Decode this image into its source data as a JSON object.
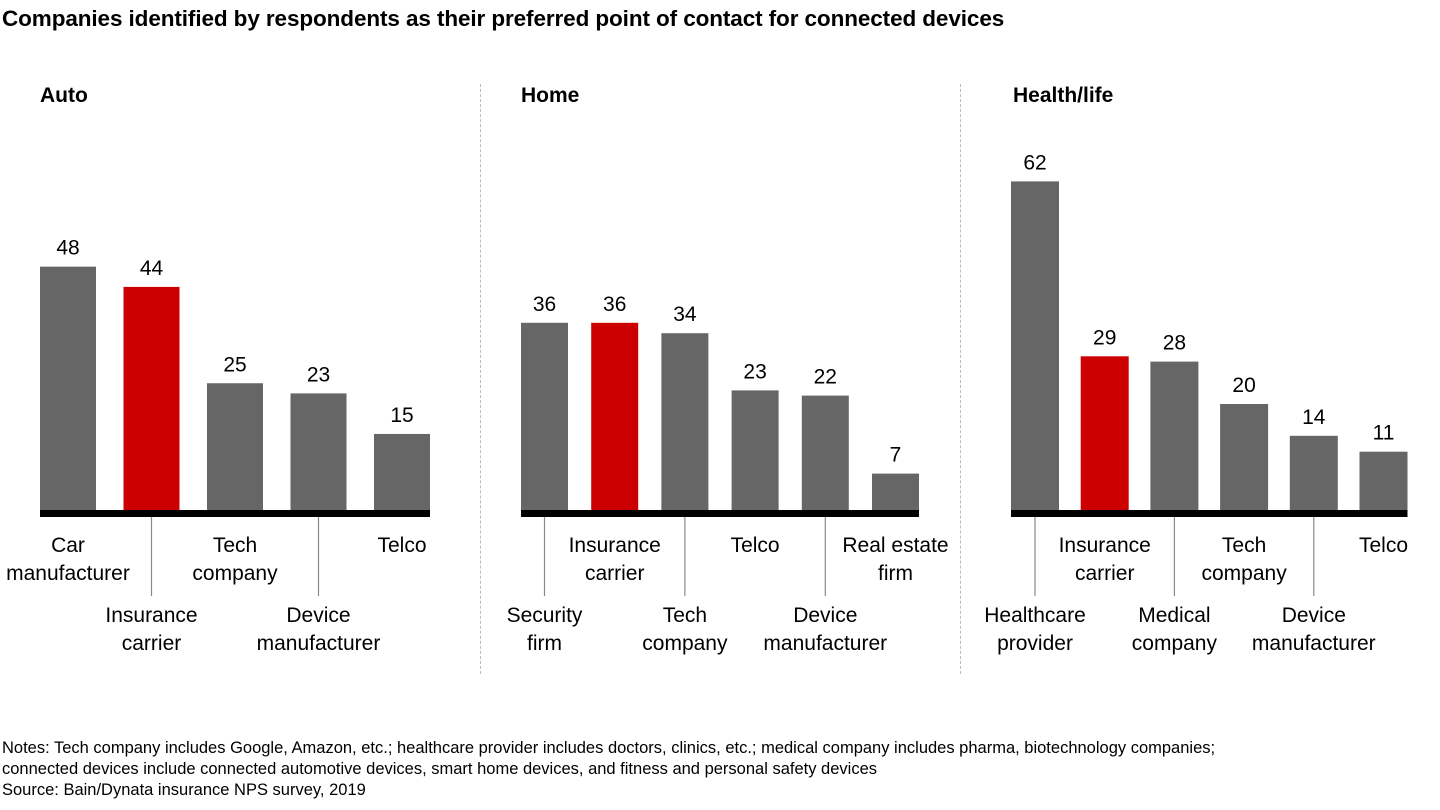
{
  "title": "Companies identified by respondents as their preferred point of contact for connected devices",
  "notes": [
    "Notes: Tech company includes Google, Amazon, etc.; healthcare provider includes doctors, clinics, etc.; medical company includes pharma, biotechnology companies;",
    "connected devices include connected automotive devices, smart home devices, and fitness and personal safety devices",
    "Source: Bain/Dynata insurance NPS survey, 2019"
  ],
  "colors": {
    "bar": "#666666",
    "highlight": "#cc0000",
    "axis": "#000000"
  },
  "chart_data": [
    {
      "type": "bar",
      "title": "Auto",
      "categories": [
        [
          "Car",
          "manufacturer"
        ],
        [
          "Insurance",
          "carrier"
        ],
        [
          "Tech",
          "company"
        ],
        [
          "Device",
          "manufacturer"
        ],
        [
          "Telco"
        ]
      ],
      "values": [
        48,
        44,
        25,
        23,
        15
      ],
      "highlight_index": 1,
      "xlabel": "",
      "ylabel": "",
      "grid": false
    },
    {
      "type": "bar",
      "title": "Home",
      "categories": [
        [
          "Security",
          "firm"
        ],
        [
          "Insurance",
          "carrier"
        ],
        [
          "Tech",
          "company"
        ],
        [
          "Telco"
        ],
        [
          "Device",
          "manufacturer"
        ],
        [
          "Real estate",
          "firm"
        ]
      ],
      "values": [
        36,
        36,
        34,
        23,
        22,
        7
      ],
      "highlight_index": 1,
      "xlabel": "",
      "ylabel": "",
      "grid": false
    },
    {
      "type": "bar",
      "title": "Health/life",
      "categories": [
        [
          "Healthcare",
          "provider"
        ],
        [
          "Insurance",
          "carrier"
        ],
        [
          "Medical",
          "company"
        ],
        [
          "Tech",
          "company"
        ],
        [
          "Device",
          "manufacturer"
        ],
        [
          "Telco"
        ]
      ],
      "values": [
        62,
        29,
        28,
        20,
        14,
        11
      ],
      "highlight_index": 1,
      "xlabel": "",
      "ylabel": "",
      "grid": false
    }
  ]
}
